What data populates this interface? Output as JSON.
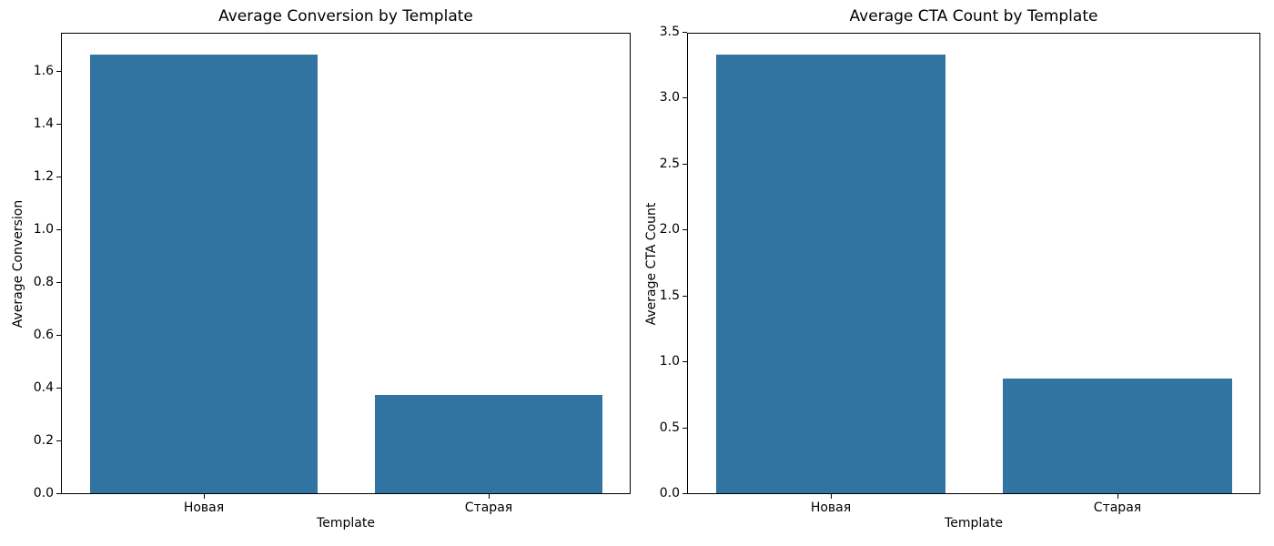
{
  "figure": {
    "background": "#ffffff",
    "text_color": "#000000"
  },
  "chart_data": [
    {
      "type": "bar",
      "title": "Average Conversion by Template",
      "xlabel": "Template",
      "ylabel": "Average Conversion",
      "categories": [
        "Новая",
        "Старая"
      ],
      "values": [
        1.667,
        0.375
      ],
      "ylim": [
        0,
        1.75
      ],
      "yticks": [
        0.0,
        0.2,
        0.4,
        0.6,
        0.8,
        1.0,
        1.2,
        1.4,
        1.6
      ],
      "ytick_labels": [
        "0.0",
        "0.2",
        "0.4",
        "0.6",
        "0.8",
        "1.0",
        "1.2",
        "1.4",
        "1.6"
      ],
      "bar_color": "#3274a1",
      "grid": false
    },
    {
      "type": "bar",
      "title": "Average CTA Count by Template",
      "xlabel": "Template",
      "ylabel": "Average CTA Count",
      "categories": [
        "Новая",
        "Старая"
      ],
      "values": [
        3.333,
        0.875
      ],
      "ylim": [
        0,
        3.5
      ],
      "yticks": [
        0.0,
        0.5,
        1.0,
        1.5,
        2.0,
        2.5,
        3.0,
        3.5
      ],
      "ytick_labels": [
        "0.0",
        "0.5",
        "1.0",
        "1.5",
        "2.0",
        "2.5",
        "3.0",
        "3.5"
      ],
      "bar_color": "#3274a1",
      "grid": false
    }
  ]
}
